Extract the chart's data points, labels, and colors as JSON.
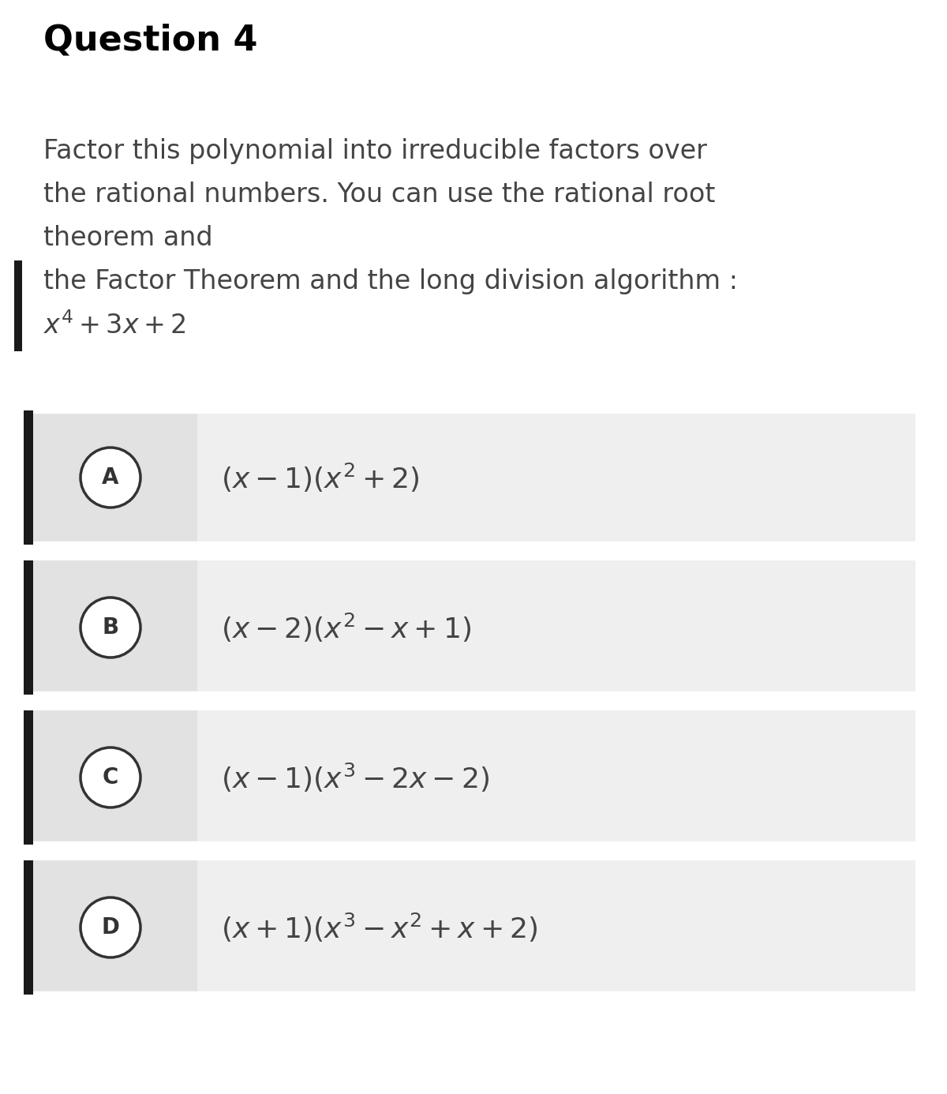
{
  "title": "Question 4",
  "question_text_lines": [
    "Factor this polynomial into irreducible factors over",
    "the rational numbers. You can use the rational root",
    "theorem and",
    "the Factor Theorem and the long division algorithm :",
    "$x^4+3x+2$"
  ],
  "options": [
    {
      "label": "A",
      "text": "$(x-1)(x^2+2)$"
    },
    {
      "label": "B",
      "text": "$(x-2)(x^2-x+1)$"
    },
    {
      "label": "C",
      "text": "$(x-1)(x^3-2x-2)$"
    },
    {
      "label": "D",
      "text": "$(x+1)(x^3-x^2+x+2)$"
    }
  ],
  "bg_color": "#ffffff",
  "option_bg_color": "#efefef",
  "option_text_color": "#444444",
  "title_color": "#000000",
  "question_text_color": "#444444",
  "circle_edge_color": "#333333",
  "circle_fill": "#ffffff",
  "left_bar_color": "#1a1a1a",
  "separator_color": "#cccccc",
  "option_left_panel_color": "#e2e2e2",
  "option_right_panel_color": "#efefef"
}
